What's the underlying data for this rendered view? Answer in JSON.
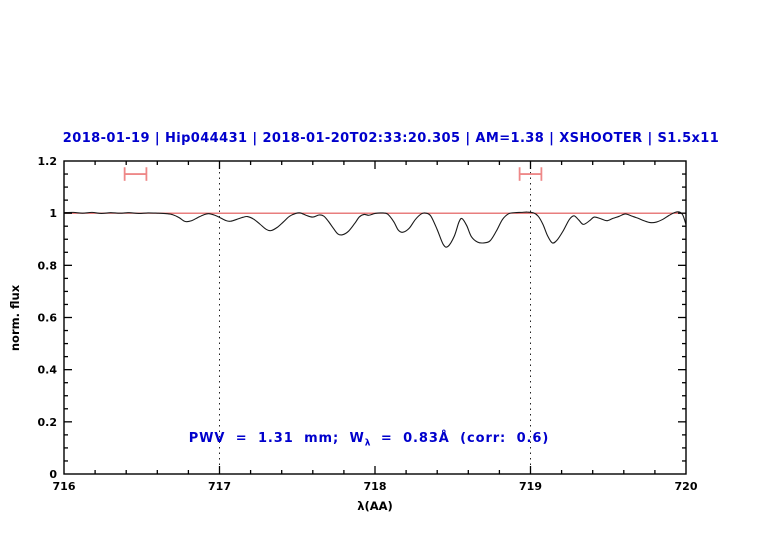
{
  "chart_data": {
    "type": "line",
    "title": "2018-01-19 | Hip044431 | 2018-01-20T02:33:20.305 | AM=1.38 | XSHOOTER | S1.5x11",
    "xlabel": "λ(AA)",
    "ylabel": "norm. flux",
    "xlim": [
      716,
      720
    ],
    "ylim": [
      0,
      1.2
    ],
    "grid": false,
    "xticks": {
      "major": [
        716,
        717,
        718,
        719,
        720
      ],
      "labels": [
        "716",
        "717",
        "718",
        "719",
        "720"
      ],
      "minor_step": 0.2
    },
    "yticks": {
      "major": [
        0,
        0.2,
        0.4,
        0.6,
        0.8,
        1,
        1.2
      ],
      "labels": [
        "0",
        "0.2",
        "0.4",
        "0.6",
        "0.8",
        "1",
        "1.2"
      ],
      "minor_step": 0.05
    },
    "reference_hline": {
      "y": 1.0,
      "color": "#e05353"
    },
    "reference_vlines": {
      "xs": [
        717,
        719
      ],
      "color": "#222222",
      "style": "dotted"
    },
    "range_markers": {
      "color": "#ee8888",
      "items": [
        {
          "x_min": 716.39,
          "x_max": 716.53,
          "y": 1.15,
          "cap_half": 0.026
        },
        {
          "x_min": 718.93,
          "x_max": 719.07,
          "y": 1.15,
          "cap_half": 0.026
        }
      ]
    },
    "series": [
      {
        "name": "spectrum",
        "color": "#1a1a1a",
        "points": [
          [
            716.0,
            1.002
          ],
          [
            716.06,
            1.003
          ],
          [
            716.12,
            1.0
          ],
          [
            716.18,
            1.003
          ],
          [
            716.24,
            0.999
          ],
          [
            716.3,
            1.002
          ],
          [
            716.36,
            1.0
          ],
          [
            716.42,
            1.002
          ],
          [
            716.48,
            0.999
          ],
          [
            716.54,
            1.001
          ],
          [
            716.6,
            1.0
          ],
          [
            716.66,
            0.998
          ],
          [
            716.7,
            0.994
          ],
          [
            716.74,
            0.983
          ],
          [
            716.78,
            0.968
          ],
          [
            716.82,
            0.971
          ],
          [
            716.86,
            0.983
          ],
          [
            716.9,
            0.994
          ],
          [
            716.93,
            0.998
          ],
          [
            716.97,
            0.992
          ],
          [
            717.0,
            0.984
          ],
          [
            717.04,
            0.972
          ],
          [
            717.07,
            0.969
          ],
          [
            717.11,
            0.976
          ],
          [
            717.15,
            0.984
          ],
          [
            717.18,
            0.987
          ],
          [
            717.22,
            0.977
          ],
          [
            717.26,
            0.958
          ],
          [
            717.3,
            0.938
          ],
          [
            717.33,
            0.933
          ],
          [
            717.37,
            0.945
          ],
          [
            717.41,
            0.966
          ],
          [
            717.45,
            0.988
          ],
          [
            717.49,
            0.999
          ],
          [
            717.52,
            1.001
          ],
          [
            717.56,
            0.991
          ],
          [
            717.6,
            0.985
          ],
          [
            717.64,
            0.993
          ],
          [
            717.67,
            0.989
          ],
          [
            717.7,
            0.969
          ],
          [
            717.73,
            0.944
          ],
          [
            717.76,
            0.921
          ],
          [
            717.79,
            0.917
          ],
          [
            717.83,
            0.931
          ],
          [
            717.87,
            0.961
          ],
          [
            717.9,
            0.986
          ],
          [
            717.93,
            0.995
          ],
          [
            717.96,
            0.992
          ],
          [
            718.0,
            0.999
          ],
          [
            718.04,
            1.001
          ],
          [
            718.08,
            0.997
          ],
          [
            718.12,
            0.968
          ],
          [
            718.15,
            0.935
          ],
          [
            718.18,
            0.927
          ],
          [
            718.22,
            0.942
          ],
          [
            718.26,
            0.976
          ],
          [
            718.3,
            0.998
          ],
          [
            718.33,
            1.0
          ],
          [
            718.36,
            0.988
          ],
          [
            718.4,
            0.937
          ],
          [
            718.44,
            0.879
          ],
          [
            718.47,
            0.873
          ],
          [
            718.51,
            0.912
          ],
          [
            718.54,
            0.966
          ],
          [
            718.56,
            0.979
          ],
          [
            718.59,
            0.952
          ],
          [
            718.62,
            0.91
          ],
          [
            718.66,
            0.889
          ],
          [
            718.7,
            0.886
          ],
          [
            718.74,
            0.894
          ],
          [
            718.78,
            0.931
          ],
          [
            718.82,
            0.976
          ],
          [
            718.86,
            0.998
          ],
          [
            718.9,
            1.002
          ],
          [
            718.94,
            1.003
          ],
          [
            718.98,
            1.004
          ],
          [
            719.02,
            1.001
          ],
          [
            719.05,
            0.988
          ],
          [
            719.08,
            0.957
          ],
          [
            719.11,
            0.913
          ],
          [
            719.14,
            0.886
          ],
          [
            719.17,
            0.896
          ],
          [
            719.21,
            0.932
          ],
          [
            719.25,
            0.976
          ],
          [
            719.28,
            0.99
          ],
          [
            719.31,
            0.974
          ],
          [
            719.34,
            0.957
          ],
          [
            719.38,
            0.971
          ],
          [
            719.41,
            0.985
          ],
          [
            719.45,
            0.979
          ],
          [
            719.49,
            0.971
          ],
          [
            719.53,
            0.98
          ],
          [
            719.57,
            0.988
          ],
          [
            719.61,
            0.997
          ],
          [
            719.65,
            0.989
          ],
          [
            719.69,
            0.981
          ],
          [
            719.73,
            0.971
          ],
          [
            719.77,
            0.964
          ],
          [
            719.81,
            0.966
          ],
          [
            719.85,
            0.976
          ],
          [
            719.89,
            0.991
          ],
          [
            719.93,
            1.003
          ],
          [
            719.96,
            1.004
          ],
          [
            719.98,
            0.992
          ],
          [
            720.0,
            0.956
          ]
        ]
      }
    ]
  },
  "annotation": {
    "prefix": "PWV = 1.31 mm; W",
    "sub": "λ",
    "suffix": " = 0.83Å (corr: 0.6)"
  },
  "colors": {
    "title_blue": "#0000cc",
    "spectrum_black": "#1a1a1a",
    "reference_red": "#e05353",
    "marker_red": "#ee8888",
    "axis_black": "#000000"
  }
}
